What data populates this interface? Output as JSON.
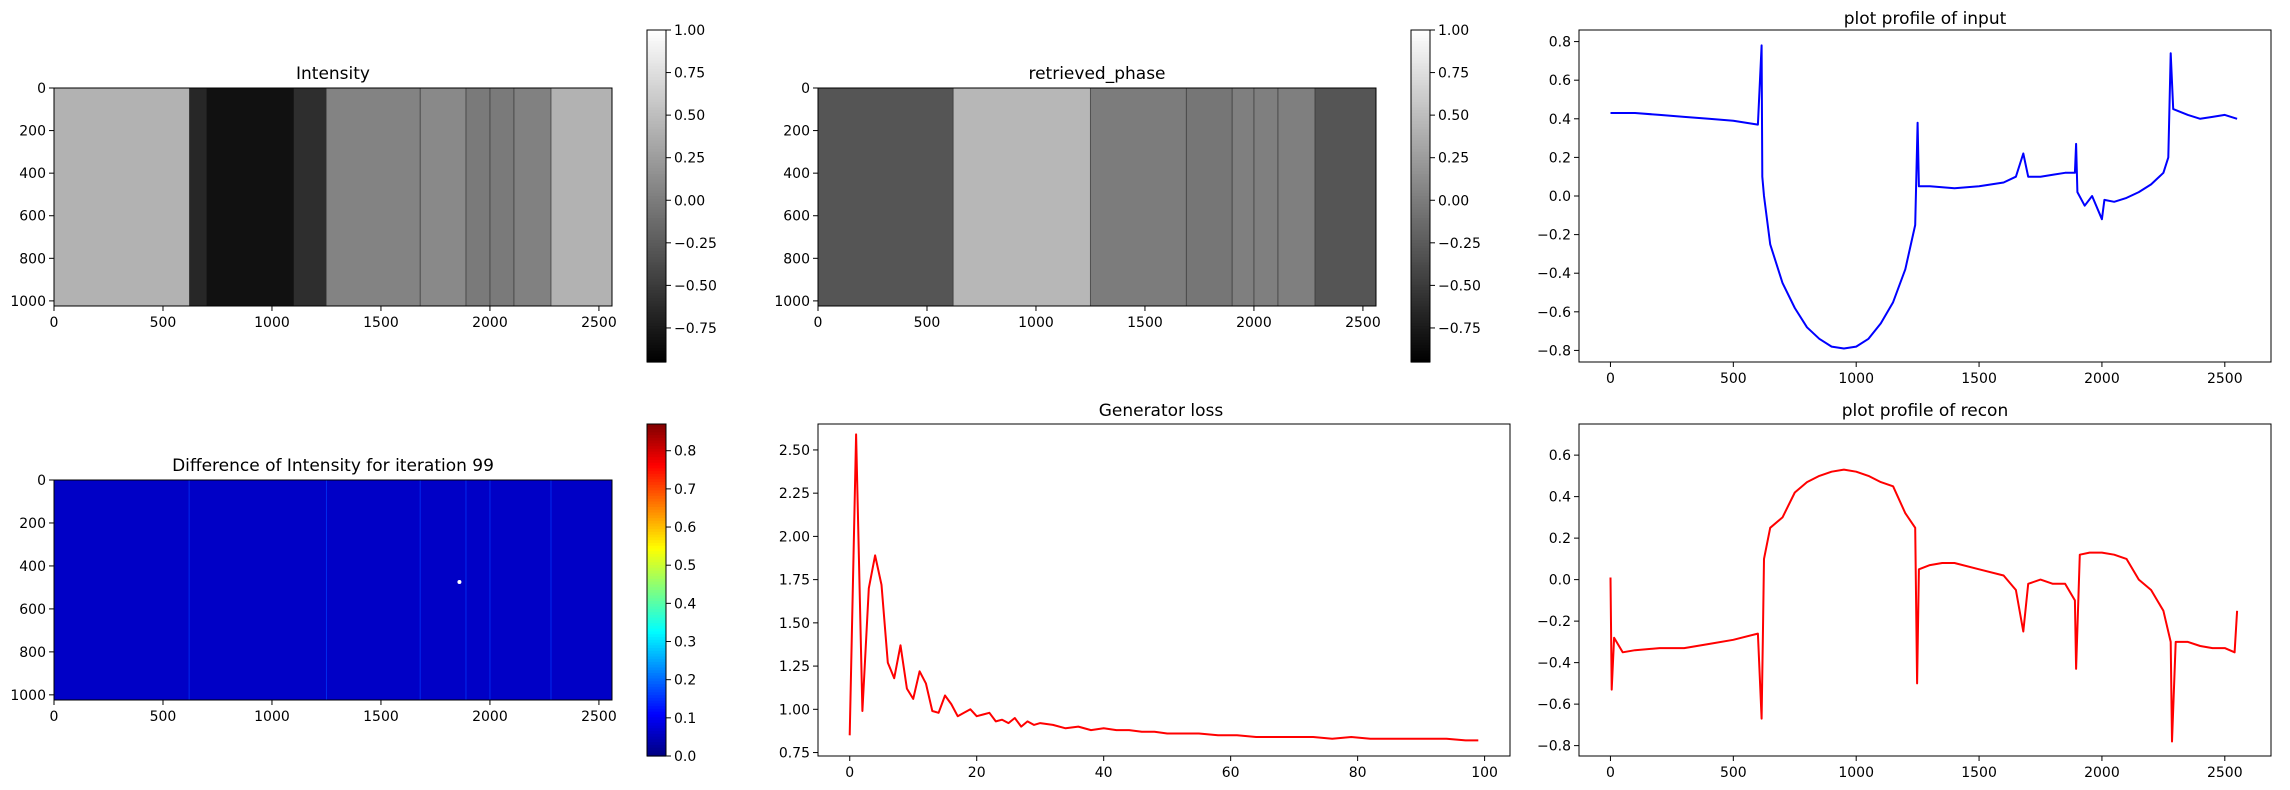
{
  "figure": {
    "background": "#ffffff"
  },
  "chart_data": [
    {
      "id": "intensity",
      "type": "heatmap",
      "title": "Intensity",
      "xlim": [
        0,
        2560
      ],
      "ylim": [
        1024,
        0
      ],
      "xticks": [
        0,
        500,
        1000,
        1500,
        2000,
        2500
      ],
      "yticks": [
        0,
        200,
        400,
        600,
        800,
        1000
      ],
      "colormap": "gray",
      "colorbar": {
        "range": [
          -0.95,
          1.0
        ],
        "ticks": [
          1.0,
          0.75,
          0.5,
          0.25,
          0.0,
          -0.25,
          -0.5,
          -0.75
        ],
        "tick_labels": [
          "1.00",
          "0.75",
          "0.50",
          "0.25",
          "0.00",
          "−0.25",
          "−0.50",
          "−0.75"
        ]
      },
      "column_bands": [
        {
          "x0": 0,
          "x1": 620,
          "value": 0.41
        },
        {
          "x0": 620,
          "x1": 700,
          "value": -0.65
        },
        {
          "x0": 700,
          "x1": 1100,
          "value": -0.82
        },
        {
          "x0": 1100,
          "x1": 1250,
          "value": -0.6
        },
        {
          "x0": 1250,
          "x1": 1680,
          "value": 0.05
        },
        {
          "x0": 1680,
          "x1": 1890,
          "value": 0.1
        },
        {
          "x0": 1890,
          "x1": 2110,
          "value": -0.02
        },
        {
          "x0": 2110,
          "x1": 2280,
          "value": 0.04
        },
        {
          "x0": 2280,
          "x1": 2560,
          "value": 0.41
        }
      ],
      "edges": [
        1680,
        1890,
        2000,
        2110,
        2280
      ]
    },
    {
      "id": "retrieved_phase",
      "type": "heatmap",
      "title": "retrieved_phase",
      "xlim": [
        0,
        2560
      ],
      "ylim": [
        1024,
        0
      ],
      "xticks": [
        0,
        500,
        1000,
        1500,
        2000,
        2500
      ],
      "yticks": [
        0,
        200,
        400,
        600,
        800,
        1000
      ],
      "colormap": "gray",
      "colorbar": {
        "range": [
          -0.95,
          1.0
        ],
        "ticks": [
          1.0,
          0.75,
          0.5,
          0.25,
          0.0,
          -0.25,
          -0.5,
          -0.75
        ],
        "tick_labels": [
          "1.00",
          "0.75",
          "0.50",
          "0.25",
          "0.00",
          "−0.25",
          "−0.50",
          "−0.75"
        ]
      },
      "column_bands": [
        {
          "x0": 0,
          "x1": 620,
          "value": -0.3
        },
        {
          "x0": 620,
          "x1": 1250,
          "value": 0.45
        },
        {
          "x0": 1250,
          "x1": 1690,
          "value": 0.0
        },
        {
          "x0": 1690,
          "x1": 1900,
          "value": -0.05
        },
        {
          "x0": 1900,
          "x1": 2280,
          "value": 0.02
        },
        {
          "x0": 2280,
          "x1": 2560,
          "value": -0.3
        }
      ],
      "edges": [
        620,
        1250,
        1690,
        1900,
        2000,
        2110,
        2280
      ]
    },
    {
      "id": "profile_input",
      "type": "line",
      "title": "plot profile of input",
      "color": "#0000ff",
      "xlim": [
        -128,
        2688
      ],
      "ylim": [
        -0.86,
        0.86
      ],
      "xticks": [
        0,
        500,
        1000,
        1500,
        2000,
        2500
      ],
      "yticks": [
        -0.8,
        -0.6,
        -0.4,
        -0.2,
        0.0,
        0.2,
        0.4,
        0.6,
        0.8
      ],
      "ytick_labels": [
        "−0.8",
        "−0.6",
        "−0.4",
        "−0.2",
        "0.0",
        "0.2",
        "0.4",
        "0.6",
        "0.8"
      ],
      "x": [
        0,
        100,
        200,
        300,
        400,
        500,
        600,
        615,
        618,
        625,
        650,
        700,
        750,
        800,
        850,
        900,
        950,
        1000,
        1050,
        1100,
        1150,
        1200,
        1240,
        1250,
        1255,
        1300,
        1400,
        1500,
        1600,
        1650,
        1680,
        1700,
        1750,
        1800,
        1850,
        1890,
        1895,
        1900,
        1930,
        1960,
        2000,
        2010,
        2050,
        2100,
        2150,
        2200,
        2250,
        2270,
        2280,
        2290,
        2350,
        2400,
        2450,
        2500,
        2550
      ],
      "y": [
        0.43,
        0.43,
        0.42,
        0.41,
        0.4,
        0.39,
        0.37,
        0.78,
        0.1,
        0.0,
        -0.25,
        -0.45,
        -0.58,
        -0.68,
        -0.74,
        -0.78,
        -0.79,
        -0.78,
        -0.74,
        -0.66,
        -0.55,
        -0.38,
        -0.15,
        0.38,
        0.05,
        0.05,
        0.04,
        0.05,
        0.07,
        0.1,
        0.22,
        0.1,
        0.1,
        0.11,
        0.12,
        0.12,
        0.27,
        0.02,
        -0.05,
        0.0,
        -0.12,
        -0.02,
        -0.03,
        -0.01,
        0.02,
        0.06,
        0.12,
        0.2,
        0.74,
        0.45,
        0.42,
        0.4,
        0.41,
        0.42,
        0.4
      ]
    },
    {
      "id": "difference",
      "type": "heatmap",
      "title": "Difference of Intensity for iteration 99",
      "xlim": [
        0,
        2560
      ],
      "ylim": [
        1024,
        0
      ],
      "xticks": [
        0,
        500,
        1000,
        1500,
        2000,
        2500
      ],
      "yticks": [
        0,
        200,
        400,
        600,
        800,
        1000
      ],
      "colormap": "jet",
      "colorbar": {
        "range": [
          0.0,
          0.87
        ],
        "ticks": [
          0.0,
          0.1,
          0.2,
          0.3,
          0.4,
          0.5,
          0.6,
          0.7,
          0.8
        ],
        "tick_labels": [
          "0.0",
          "0.1",
          "0.2",
          "0.3",
          "0.4",
          "0.5",
          "0.6",
          "0.7",
          "0.8"
        ]
      },
      "background_value": 0.06,
      "edges": [
        620,
        1250,
        1680,
        1890,
        2000,
        2280
      ],
      "hot_spots": [
        {
          "x": 1860,
          "y": 475,
          "value": 0.87
        }
      ]
    },
    {
      "id": "generator_loss",
      "type": "line",
      "title": "Generator loss",
      "color": "#ff0000",
      "xlim": [
        -5,
        104
      ],
      "ylim": [
        0.73,
        2.65
      ],
      "xticks": [
        0,
        20,
        40,
        60,
        80,
        100
      ],
      "yticks": [
        0.75,
        1.0,
        1.25,
        1.5,
        1.75,
        2.0,
        2.25,
        2.5
      ],
      "ytick_labels": [
        "0.75",
        "1.00",
        "1.25",
        "1.50",
        "1.75",
        "2.00",
        "2.25",
        "2.50"
      ],
      "x": [
        0,
        1,
        2,
        3,
        4,
        5,
        6,
        7,
        8,
        9,
        10,
        11,
        12,
        13,
        14,
        15,
        16,
        17,
        18,
        19,
        20,
        21,
        22,
        23,
        24,
        25,
        26,
        27,
        28,
        29,
        30,
        32,
        34,
        36,
        38,
        40,
        42,
        44,
        46,
        48,
        50,
        52,
        55,
        58,
        61,
        64,
        67,
        70,
        73,
        76,
        79,
        82,
        85,
        88,
        91,
        94,
        97,
        99
      ],
      "y": [
        0.85,
        2.59,
        0.99,
        1.7,
        1.89,
        1.72,
        1.27,
        1.18,
        1.37,
        1.12,
        1.06,
        1.22,
        1.15,
        0.99,
        0.98,
        1.08,
        1.03,
        0.96,
        0.98,
        1.0,
        0.96,
        0.97,
        0.98,
        0.93,
        0.94,
        0.92,
        0.95,
        0.9,
        0.93,
        0.91,
        0.92,
        0.91,
        0.89,
        0.9,
        0.88,
        0.89,
        0.88,
        0.88,
        0.87,
        0.87,
        0.86,
        0.86,
        0.86,
        0.85,
        0.85,
        0.84,
        0.84,
        0.84,
        0.84,
        0.83,
        0.84,
        0.83,
        0.83,
        0.83,
        0.83,
        0.83,
        0.82,
        0.82
      ]
    },
    {
      "id": "profile_recon",
      "type": "line",
      "title": "plot profile of recon",
      "color": "#ff0000",
      "xlim": [
        -128,
        2688
      ],
      "ylim": [
        -0.85,
        0.75
      ],
      "xticks": [
        0,
        500,
        1000,
        1500,
        2000,
        2500
      ],
      "yticks": [
        -0.8,
        -0.6,
        -0.4,
        -0.2,
        0.0,
        0.2,
        0.4,
        0.6
      ],
      "ytick_labels": [
        "−0.8",
        "−0.6",
        "−0.4",
        "−0.2",
        "0.0",
        "0.2",
        "0.4",
        "0.6"
      ],
      "x": [
        0,
        5,
        15,
        50,
        100,
        200,
        300,
        400,
        500,
        600,
        615,
        620,
        625,
        650,
        700,
        750,
        800,
        850,
        900,
        950,
        1000,
        1050,
        1100,
        1150,
        1200,
        1240,
        1248,
        1255,
        1300,
        1350,
        1400,
        1500,
        1600,
        1650,
        1680,
        1700,
        1750,
        1800,
        1850,
        1890,
        1895,
        1910,
        1950,
        2000,
        2050,
        2100,
        2150,
        2200,
        2250,
        2280,
        2285,
        2300,
        2350,
        2400,
        2450,
        2500,
        2540,
        2550
      ],
      "y": [
        0.01,
        -0.53,
        -0.28,
        -0.35,
        -0.34,
        -0.33,
        -0.33,
        -0.31,
        -0.29,
        -0.26,
        -0.67,
        -0.3,
        0.1,
        0.25,
        0.3,
        0.42,
        0.47,
        0.5,
        0.52,
        0.53,
        0.52,
        0.5,
        0.47,
        0.45,
        0.32,
        0.25,
        -0.5,
        0.05,
        0.07,
        0.08,
        0.08,
        0.05,
        0.02,
        -0.05,
        -0.25,
        -0.02,
        0.0,
        -0.02,
        -0.02,
        -0.1,
        -0.43,
        0.12,
        0.13,
        0.13,
        0.12,
        0.1,
        0.0,
        -0.05,
        -0.15,
        -0.3,
        -0.78,
        -0.3,
        -0.3,
        -0.32,
        -0.33,
        -0.33,
        -0.35,
        -0.15
      ]
    }
  ]
}
